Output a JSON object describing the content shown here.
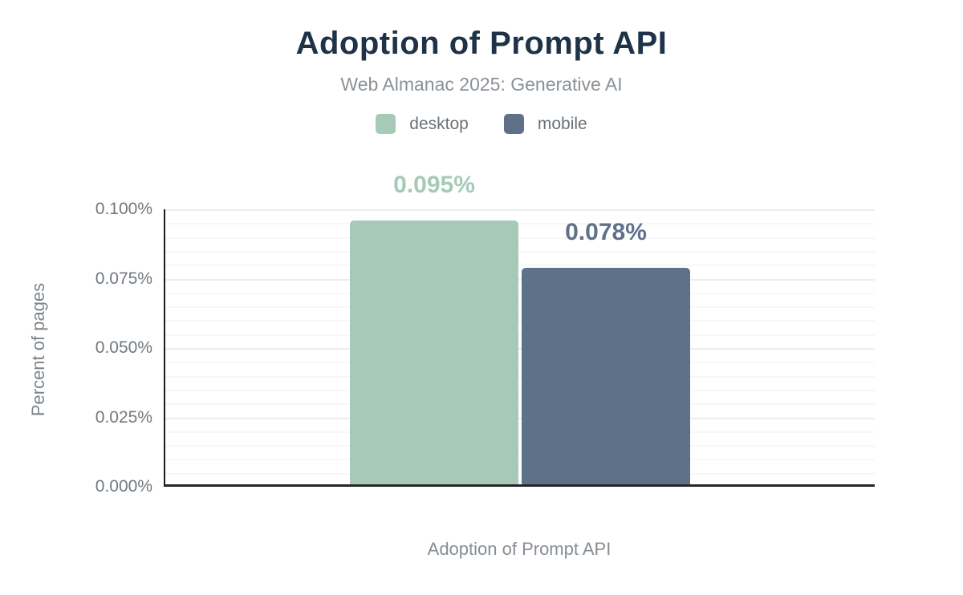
{
  "header": {
    "title": "Adoption of Prompt API",
    "subtitle": "Web Almanac 2025: Generative AI"
  },
  "legend": [
    {
      "label": "desktop",
      "color": "#a6c9b8"
    },
    {
      "label": "mobile",
      "color": "#5f7189"
    }
  ],
  "chart_data": {
    "type": "bar",
    "title": "Adoption of Prompt API",
    "subtitle": "Web Almanac 2025: Generative AI",
    "categories": [
      "Adoption of Prompt API"
    ],
    "series": [
      {
        "name": "desktop",
        "values": [
          0.095
        ],
        "data_labels": [
          "0.095%"
        ],
        "color": "#a6c9b8"
      },
      {
        "name": "mobile",
        "values": [
          0.078
        ],
        "data_labels": [
          "0.078%"
        ],
        "color": "#5f7189"
      }
    ],
    "xlabel": "Adoption of Prompt API",
    "ylabel": "Percent of pages",
    "ylim": [
      0,
      0.1
    ],
    "ytick_labels": [
      "0.000%",
      "0.025%",
      "0.050%",
      "0.075%",
      "0.100%"
    ],
    "ytick_values": [
      0,
      0.025,
      0.05,
      0.075,
      0.1
    ],
    "minor_grid_step": 0.005,
    "grid": "horizontal",
    "legend_position": "top"
  },
  "colors": {
    "title": "#1e3248",
    "subtitle": "#8a9197",
    "tick_text": "#71787e",
    "axis_line": "#1c1c1c",
    "gridline_minor": "#f7f7f7",
    "gridline_major": "#ededed"
  }
}
